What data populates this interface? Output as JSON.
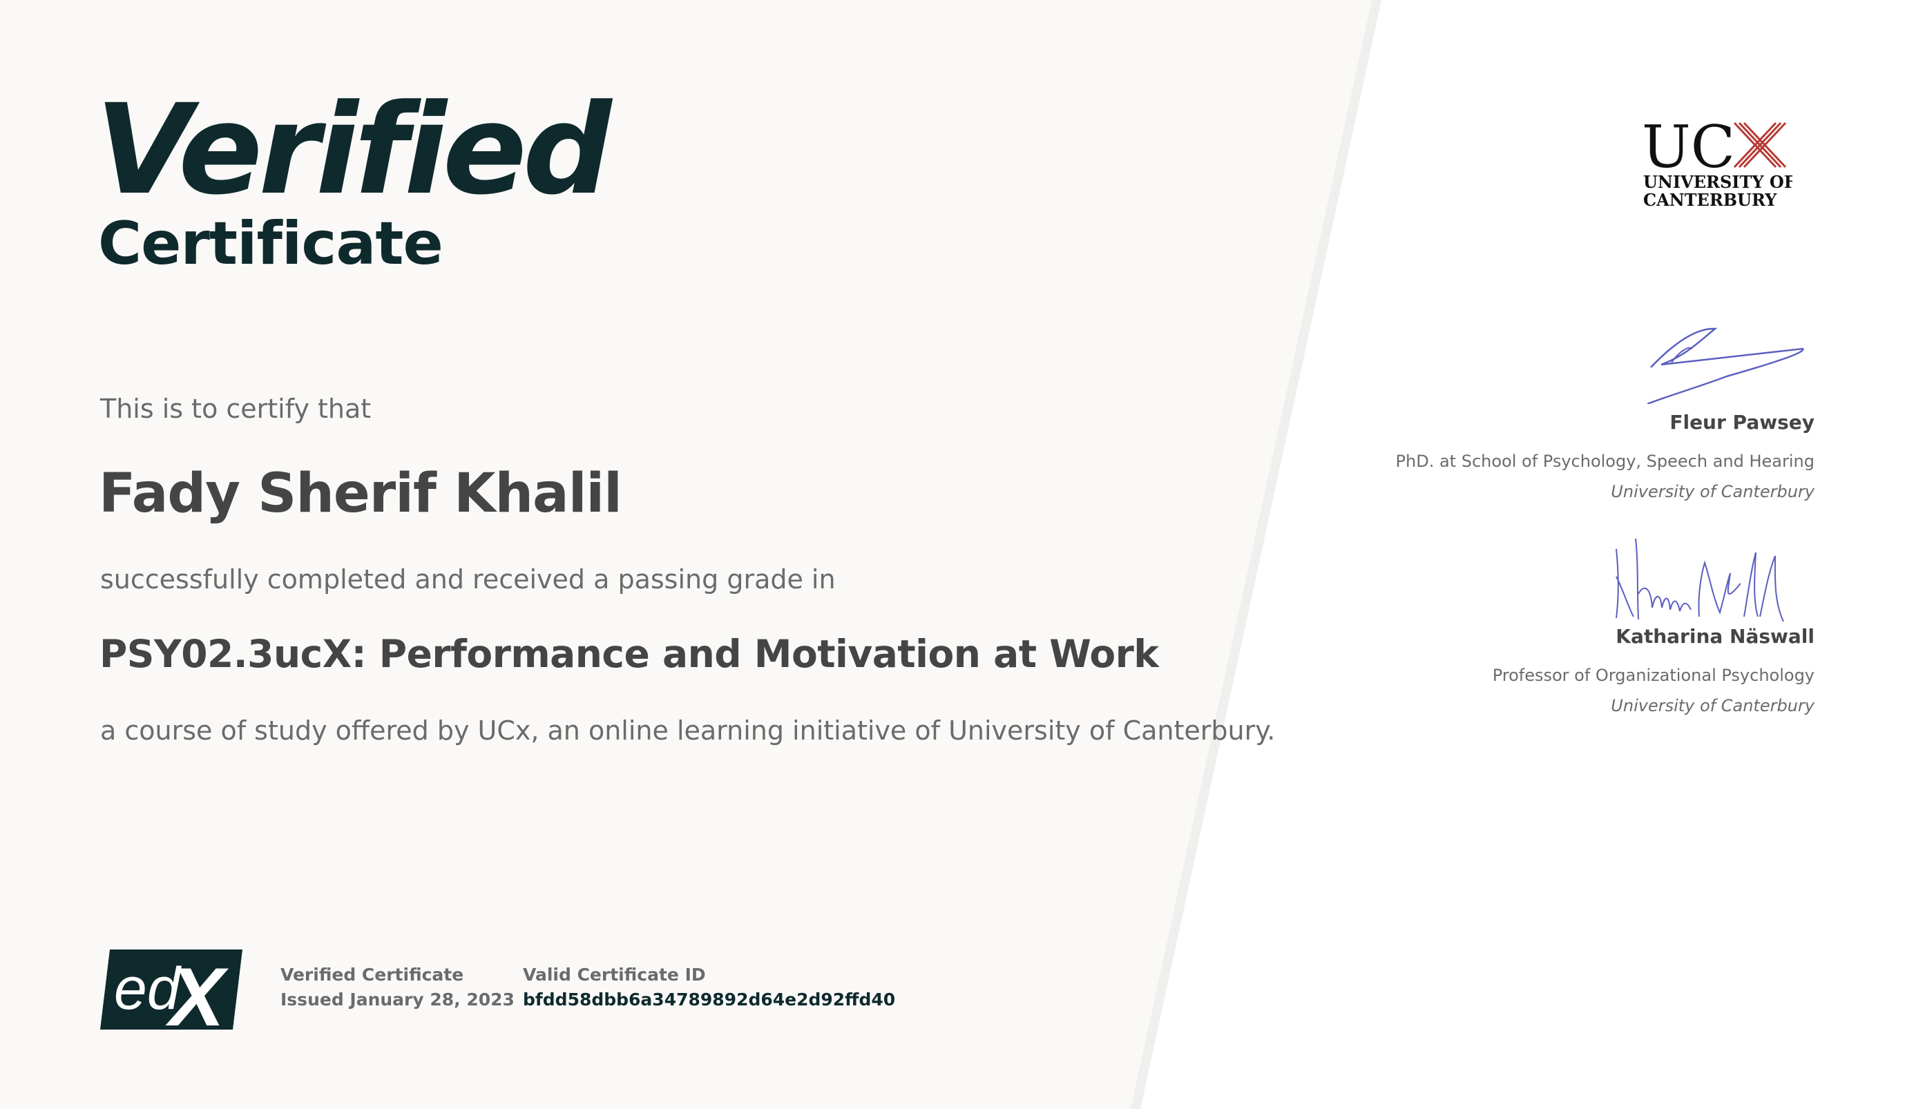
{
  "header": {
    "title_main": "Verified",
    "title_sub": "Certificate"
  },
  "body": {
    "certify_text": "This is to certify that",
    "learner_name": "Fady Sherif Khalil",
    "completed_text": "successfully completed and received a passing grade in",
    "course_title": "PSY02.3ucX: Performance and Motivation at Work",
    "offered_text": "a course of study offered by UCx, an online learning initiative of University of Canterbury."
  },
  "footer": {
    "logo_text": "edX",
    "certificate_type": "Verified Certificate",
    "issued": "Issued January 28, 2023",
    "id_label": "Valid Certificate ID",
    "id_value": "bfdd58dbb6a34789892d64e2d92ffd40"
  },
  "institution": {
    "logo_mark": "UCX",
    "logo_line1": "UNIVERSITY OF",
    "logo_line2": "CANTERBURY"
  },
  "signatories": [
    {
      "name": "Fleur Pawsey",
      "title": "PhD. at School of Psychology, Speech and Hearing",
      "organization": "University of Canterbury"
    },
    {
      "name": "Katharina Näswall",
      "title": "Professor of Organizational Psychology",
      "organization": "University of Canterbury"
    }
  ],
  "colors": {
    "brand_dark": "#0f2a2d",
    "ucx_red": "#b73a36",
    "signature_ink": "#5b5fbf",
    "panel_left": "#faf9f7",
    "divider": "#efefee",
    "text_gray": "#6b6b6b",
    "text_dark": "#454545"
  }
}
